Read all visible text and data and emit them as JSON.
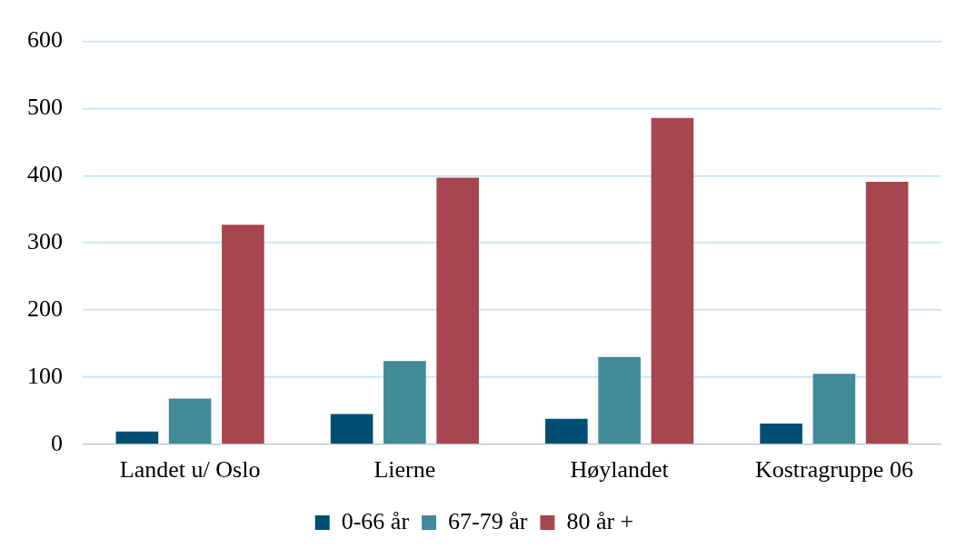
{
  "chart_data": {
    "type": "bar",
    "categories": [
      "Landet u/ Oslo",
      "Lierne",
      "Høylandet",
      "Kostragruppe 06"
    ],
    "series": [
      {
        "name": "0-66 år",
        "color": "#004f72",
        "values": [
          19,
          45,
          38,
          31
        ]
      },
      {
        "name": "67-79 år",
        "color": "#418a98",
        "values": [
          68,
          124,
          130,
          105
        ]
      },
      {
        "name": "80 år +",
        "color": "#a84650",
        "values": [
          327,
          397,
          486,
          391
        ]
      }
    ],
    "ylim": [
      0,
      600
    ],
    "yticks": [
      0,
      100,
      200,
      300,
      400,
      500,
      600
    ],
    "grid": "y",
    "legend": "bottom"
  }
}
